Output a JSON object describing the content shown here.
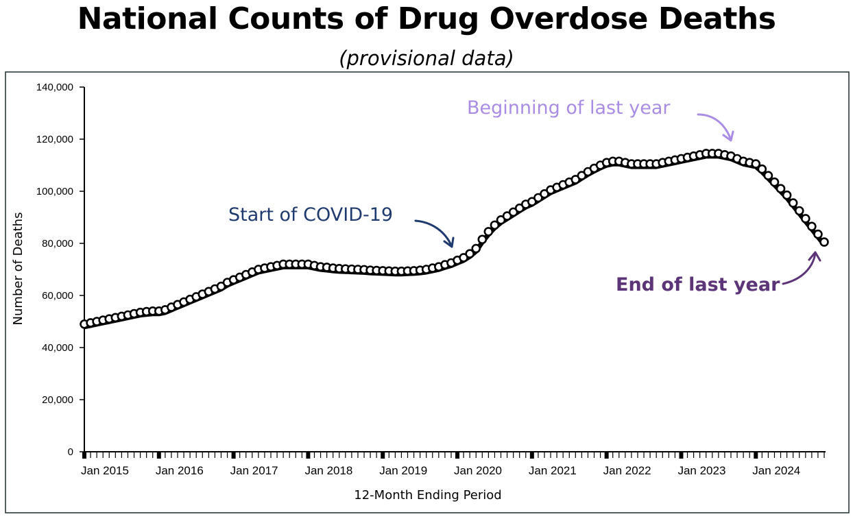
{
  "colors": {
    "covid": "#1f3a6e",
    "beginning": "#a98ce4",
    "end": "#5c3478",
    "line": "#000000"
  },
  "chart_data": {
    "type": "line",
    "title": "National Counts of Drug Overdose Deaths",
    "subtitle": "(provisional data)",
    "xlabel": "12-Month Ending Period",
    "ylabel": "Number of Deaths",
    "ylim": [
      0,
      140000
    ],
    "yticks": [
      0,
      20000,
      40000,
      60000,
      80000,
      100000,
      120000,
      140000
    ],
    "ytick_labels": [
      "0",
      "20,000",
      "40,000",
      "60,000",
      "80,000",
      "100,000",
      "120,000",
      "140,000"
    ],
    "x_start": "Jan 2015",
    "x_end": "Dec 2024",
    "xtick_labels": [
      "Jan 2015",
      "Jan 2016",
      "Jan 2017",
      "Jan 2018",
      "Jan 2019",
      "Jan 2020",
      "Jan 2021",
      "Jan 2022",
      "Jan 2023",
      "Jan 2024"
    ],
    "annual_points": [
      [
        "Jan 2015",
        49000
      ],
      [
        "Jan 2016",
        54000
      ],
      [
        "Jan 2017",
        66000
      ],
      [
        "Jan 2018",
        72000
      ],
      [
        "Jan 2019",
        69500
      ],
      [
        "Jan 2020",
        73500
      ],
      [
        "Jan 2021",
        96000
      ],
      [
        "Jan 2022",
        111000
      ],
      [
        "Jan 2023",
        112500
      ],
      [
        "Jan 2024",
        110500
      ],
      [
        "Dec 2024",
        80500
      ]
    ],
    "series": [
      {
        "values": [
          49000,
          49500,
          50000,
          50500,
          51000,
          51500,
          52000,
          52500,
          53000,
          53500,
          53800,
          54000,
          54000,
          54500,
          55500,
          56500,
          57500,
          58500,
          59500,
          60500,
          61500,
          62500,
          63500,
          65000,
          66000,
          67000,
          68000,
          69000,
          70000,
          70500,
          71000,
          71500,
          72000,
          72000,
          72000,
          72000,
          72000,
          71500,
          71000,
          70800,
          70500,
          70300,
          70200,
          70100,
          70000,
          69900,
          69700,
          69600,
          69500,
          69400,
          69300,
          69300,
          69400,
          69500,
          69700,
          70000,
          70500,
          71000,
          71800,
          72500,
          73500,
          74500,
          76000,
          78000,
          81500,
          84500,
          87000,
          89000,
          90500,
          92000,
          93500,
          95000,
          96000,
          97500,
          99000,
          100500,
          101500,
          102500,
          103500,
          104500,
          106000,
          107500,
          108800,
          110000,
          111000,
          111500,
          111500,
          111000,
          110500,
          110500,
          110500,
          110500,
          110500,
          111000,
          111500,
          112000,
          112500,
          113000,
          113500,
          114000,
          114500,
          114500,
          114500,
          114000,
          113500,
          112500,
          111500,
          111000,
          110500,
          108500,
          106000,
          103500,
          101000,
          98500,
          95500,
          92500,
          89500,
          86500,
          83500,
          80500
        ]
      }
    ]
  },
  "annotations": {
    "covid": "Start of COVID-19",
    "beginning": "Beginning of last year",
    "end": "End of last year"
  }
}
